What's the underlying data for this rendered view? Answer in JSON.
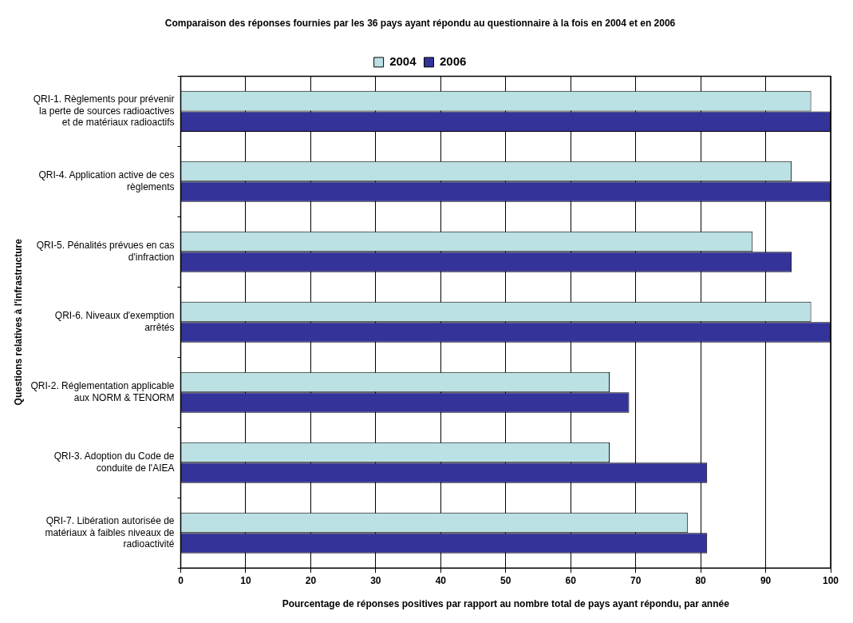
{
  "chart_data": {
    "type": "bar",
    "orientation": "horizontal",
    "title": "Comparaison des réponses fournies par les 36 pays ayant répondu au questionnaire à la fois en 2004 et en 2006",
    "xlabel": "Pourcentage de réponses positives par rapport au nombre total de pays ayant répondu, par année",
    "ylabel": "Questions relatives à l'infrastructure",
    "categories": [
      "QRI-1. Règlements pour prévenir la perte de sources radioactives et de matériaux radioactifs",
      "QRI-4. Application active de ces règlements",
      "QRI-5. Pénalités prévues en cas d'infraction",
      "QRI-6. Niveaux d'exemption arrêtés",
      "QRI-2. Réglementation applicable aux NORM & TENORM",
      "QRI-3. Adoption du Code de conduite de l'AIEA",
      "QRI-7. Libération autorisée de matériaux à faibles niveaux de radioactivité"
    ],
    "series": [
      {
        "name": "2004",
        "color": "#bbe1e4",
        "values": [
          97,
          94,
          88,
          97,
          66,
          66,
          78
        ]
      },
      {
        "name": "2006",
        "color": "#333399",
        "values": [
          100,
          100,
          94,
          100,
          69,
          81,
          81
        ]
      }
    ],
    "xlim": [
      0,
      100
    ],
    "xticks": [
      0,
      10,
      20,
      30,
      40,
      50,
      60,
      70,
      80,
      90,
      100
    ],
    "grid": "x",
    "legend": "top"
  }
}
